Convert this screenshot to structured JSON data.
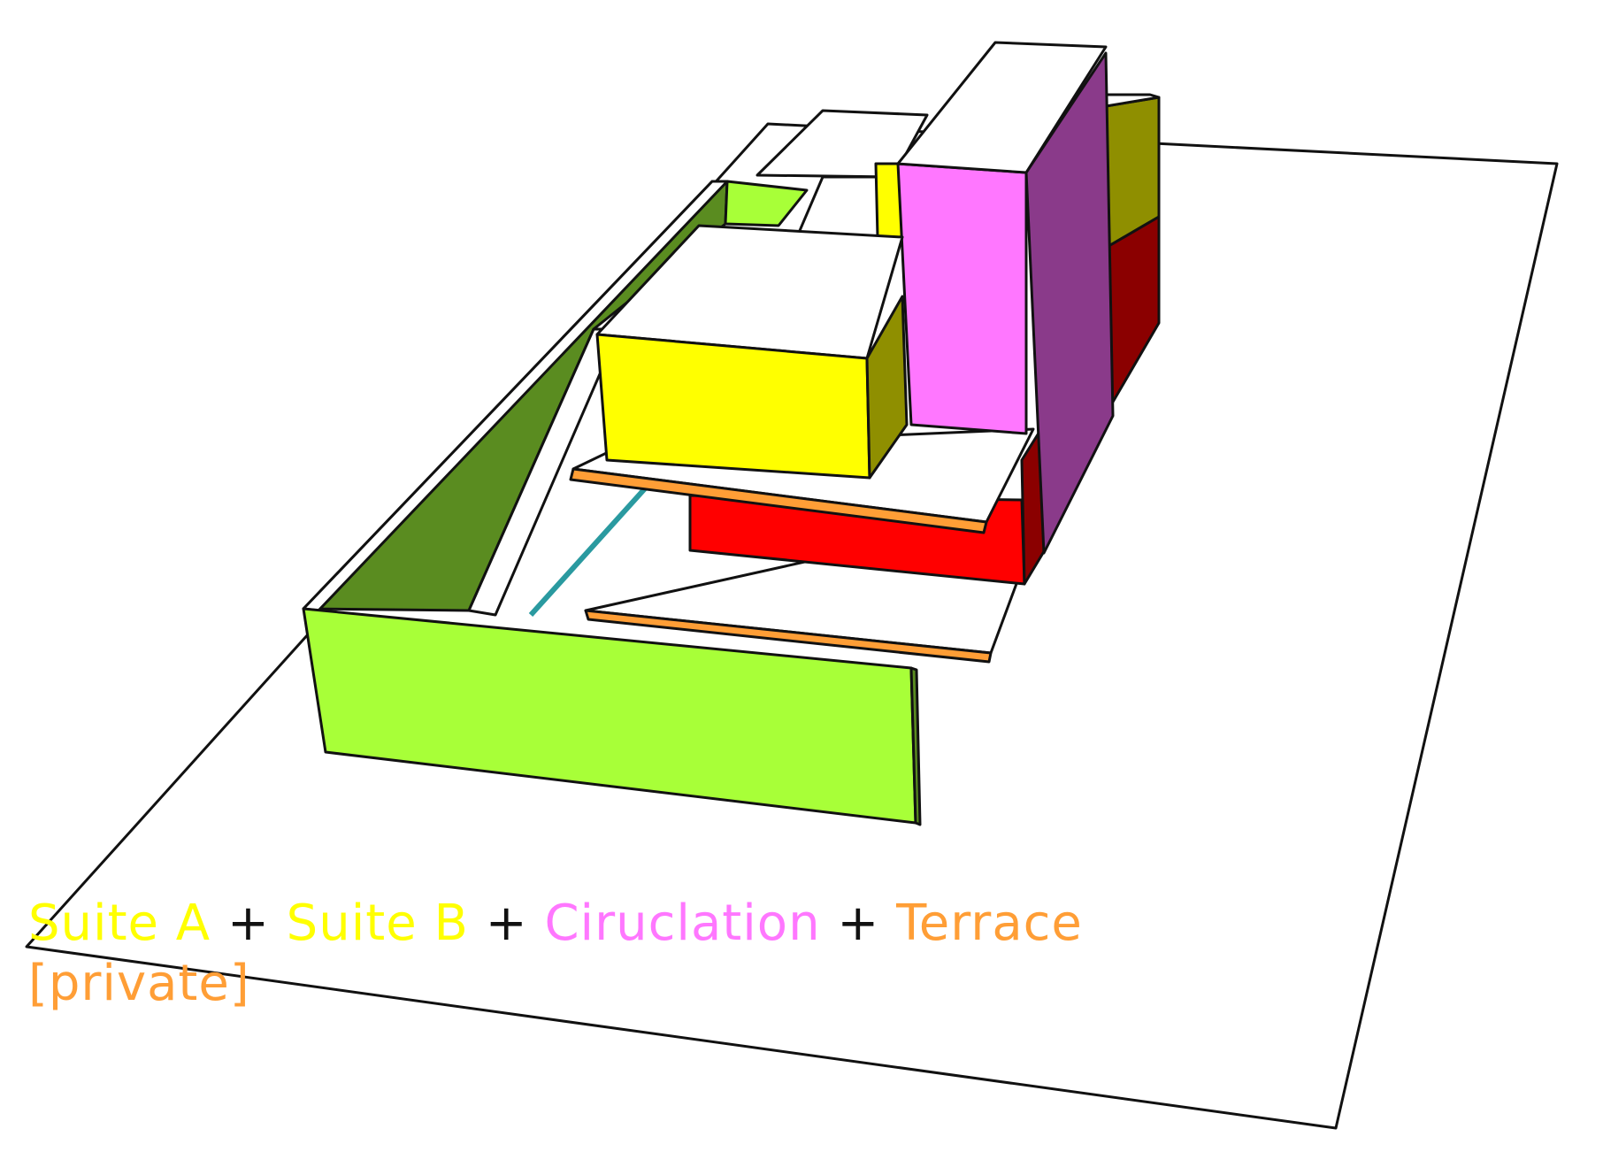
{
  "legend": {
    "items": [
      {
        "label": "Suite A",
        "color": "#ffff00"
      },
      {
        "label": "Suite B",
        "color": "#ffff00"
      },
      {
        "label": "Ciruclation",
        "color": "#ff77ff"
      },
      {
        "label": "Terrace [private]",
        "color": "#ff9e36"
      }
    ],
    "separator": "+"
  },
  "colors": {
    "suite_front": "#ffff00",
    "suite_side": "#8f8f00",
    "circulation_front": "#ff77ff",
    "circulation_side": "#8a3a8a",
    "red_front": "#ff0000",
    "red_side": "#8b0000",
    "green_front": "#a8ff38",
    "green_inner": "#5a8c20",
    "terrace": "#ff9e36",
    "teal": "#2a9aa0",
    "outline": "#111111",
    "top": "#ffffff"
  }
}
